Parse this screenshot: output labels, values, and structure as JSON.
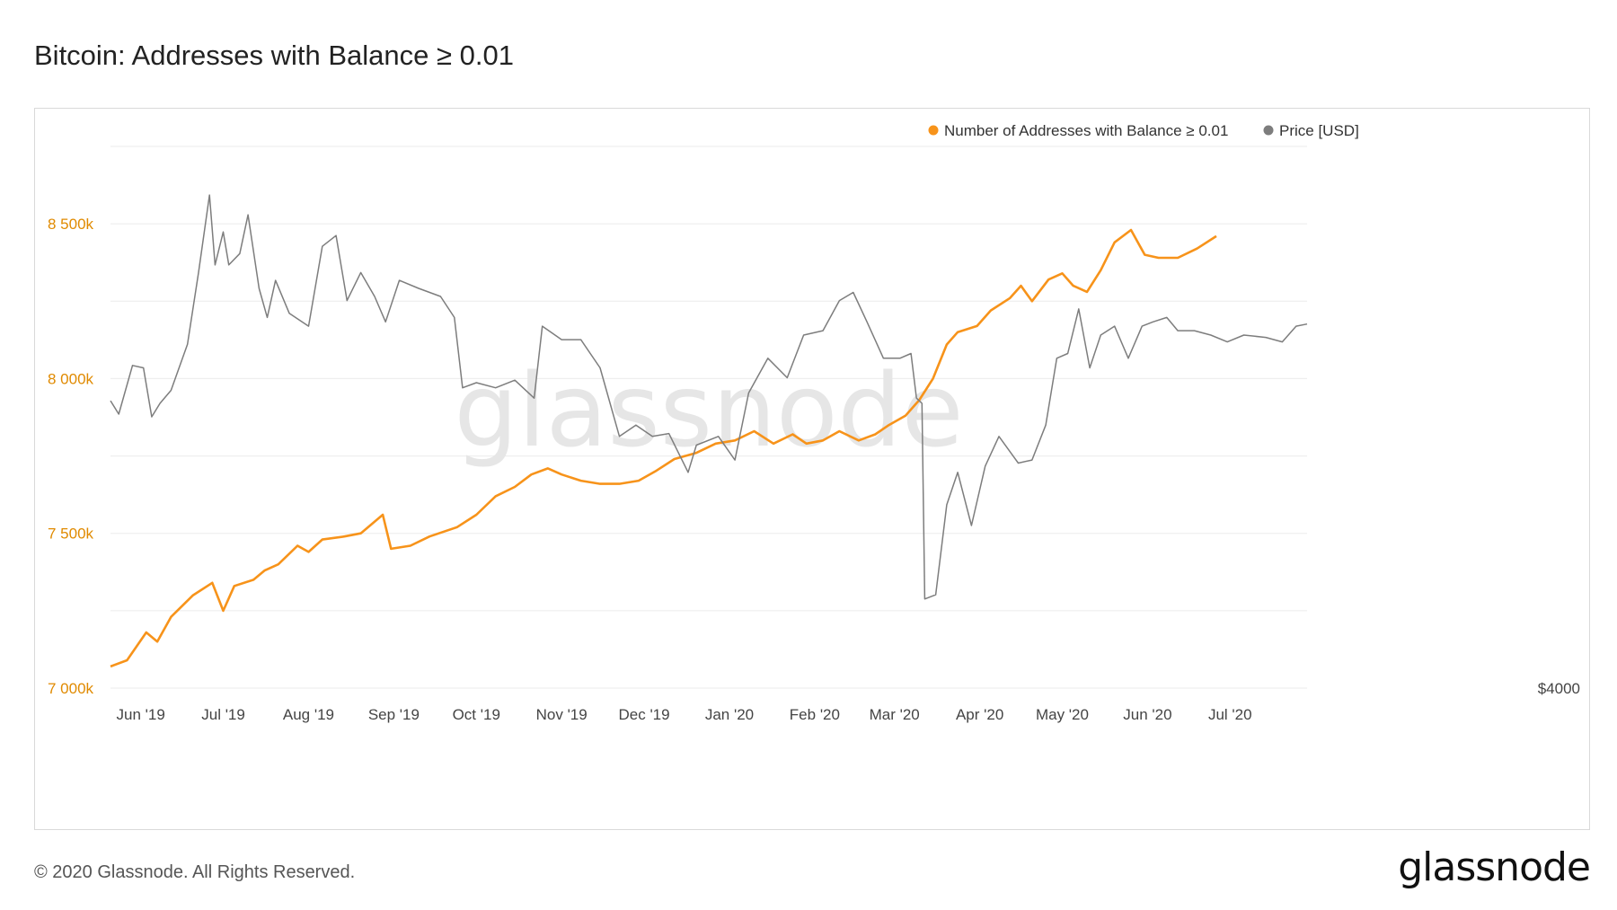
{
  "title": "Bitcoin: Addresses with Balance ≥ 0.01",
  "footer": "© 2020 Glassnode. All Rights Reserved.",
  "brand": "glassnode",
  "watermark": "glassnode",
  "colors": {
    "addresses": "#f7931a",
    "price": "#7d7d7d",
    "grid": "#ebebeb",
    "axis_left": "#e08a00"
  },
  "chart_data": {
    "type": "line",
    "title": "Bitcoin: Addresses with Balance ≥ 0.01",
    "legend_position": "top-right",
    "grid": true,
    "x_range": [
      "2019-05-21",
      "2020-07-29"
    ],
    "x_ticks": [
      {
        "date": "2019-06-01",
        "label": "Jun '19"
      },
      {
        "date": "2019-07-01",
        "label": "Jul '19"
      },
      {
        "date": "2019-08-01",
        "label": "Aug '19"
      },
      {
        "date": "2019-09-01",
        "label": "Sep '19"
      },
      {
        "date": "2019-10-01",
        "label": "Oct '19"
      },
      {
        "date": "2019-11-01",
        "label": "Nov '19"
      },
      {
        "date": "2019-12-01",
        "label": "Dec '19"
      },
      {
        "date": "2020-01-01",
        "label": "Jan '20"
      },
      {
        "date": "2020-02-01",
        "label": "Feb '20"
      },
      {
        "date": "2020-03-01",
        "label": "Mar '20"
      },
      {
        "date": "2020-04-01",
        "label": "Apr '20"
      },
      {
        "date": "2020-05-01",
        "label": "May '20"
      },
      {
        "date": "2020-06-01",
        "label": "Jun '20"
      },
      {
        "date": "2020-07-01",
        "label": "Jul '20"
      }
    ],
    "y_left": {
      "range": [
        7000000,
        8750000
      ],
      "ticks": [
        {
          "value": 7000000,
          "label": "7 000k"
        },
        {
          "value": 7500000,
          "label": "7 500k"
        },
        {
          "value": 8000000,
          "label": "8 000k"
        },
        {
          "value": 8500000,
          "label": "8 500k"
        }
      ]
    },
    "y_right": {
      "scale": "log",
      "range": [
        4000,
        14600
      ],
      "ticks": [
        {
          "value": 4000,
          "label": "$4000"
        }
      ]
    },
    "series": [
      {
        "name": "Number of Addresses with Balance ≥ 0.01",
        "axis": "left",
        "points": [
          [
            "2019-05-21",
            7070000
          ],
          [
            "2019-05-27",
            7090000
          ],
          [
            "2019-06-03",
            7180000
          ],
          [
            "2019-06-07",
            7150000
          ],
          [
            "2019-06-12",
            7230000
          ],
          [
            "2019-06-20",
            7300000
          ],
          [
            "2019-06-27",
            7340000
          ],
          [
            "2019-07-01",
            7250000
          ],
          [
            "2019-07-05",
            7330000
          ],
          [
            "2019-07-12",
            7350000
          ],
          [
            "2019-07-16",
            7380000
          ],
          [
            "2019-07-21",
            7400000
          ],
          [
            "2019-07-28",
            7460000
          ],
          [
            "2019-08-01",
            7440000
          ],
          [
            "2019-08-06",
            7480000
          ],
          [
            "2019-08-14",
            7490000
          ],
          [
            "2019-08-20",
            7500000
          ],
          [
            "2019-08-28",
            7560000
          ],
          [
            "2019-08-31",
            7450000
          ],
          [
            "2019-09-07",
            7460000
          ],
          [
            "2019-09-14",
            7490000
          ],
          [
            "2019-09-24",
            7520000
          ],
          [
            "2019-10-01",
            7560000
          ],
          [
            "2019-10-08",
            7620000
          ],
          [
            "2019-10-15",
            7650000
          ],
          [
            "2019-10-21",
            7690000
          ],
          [
            "2019-10-27",
            7710000
          ],
          [
            "2019-11-01",
            7690000
          ],
          [
            "2019-11-08",
            7670000
          ],
          [
            "2019-11-15",
            7660000
          ],
          [
            "2019-11-22",
            7660000
          ],
          [
            "2019-11-29",
            7670000
          ],
          [
            "2019-12-05",
            7700000
          ],
          [
            "2019-12-12",
            7740000
          ],
          [
            "2019-12-20",
            7760000
          ],
          [
            "2019-12-27",
            7790000
          ],
          [
            "2020-01-03",
            7800000
          ],
          [
            "2020-01-10",
            7830000
          ],
          [
            "2020-01-17",
            7790000
          ],
          [
            "2020-01-24",
            7820000
          ],
          [
            "2020-01-29",
            7790000
          ],
          [
            "2020-02-04",
            7800000
          ],
          [
            "2020-02-10",
            7830000
          ],
          [
            "2020-02-17",
            7800000
          ],
          [
            "2020-02-23",
            7820000
          ],
          [
            "2020-02-28",
            7850000
          ],
          [
            "2020-03-05",
            7880000
          ],
          [
            "2020-03-10",
            7930000
          ],
          [
            "2020-03-15",
            8000000
          ],
          [
            "2020-03-20",
            8110000
          ],
          [
            "2020-03-24",
            8150000
          ],
          [
            "2020-03-31",
            8170000
          ],
          [
            "2020-04-05",
            8220000
          ],
          [
            "2020-04-12",
            8260000
          ],
          [
            "2020-04-16",
            8300000
          ],
          [
            "2020-04-20",
            8250000
          ],
          [
            "2020-04-26",
            8320000
          ],
          [
            "2020-05-01",
            8340000
          ],
          [
            "2020-05-05",
            8300000
          ],
          [
            "2020-05-10",
            8280000
          ],
          [
            "2020-05-15",
            8350000
          ],
          [
            "2020-05-20",
            8440000
          ],
          [
            "2020-05-26",
            8480000
          ],
          [
            "2020-05-31",
            8400000
          ],
          [
            "2020-06-05",
            8390000
          ],
          [
            "2020-06-12",
            8390000
          ],
          [
            "2020-06-19",
            8420000
          ],
          [
            "2020-06-26",
            8460000
          ]
        ]
      },
      {
        "name": "Price [USD]",
        "axis": "right",
        "points": [
          [
            "2019-05-21",
            7950
          ],
          [
            "2019-05-24",
            7700
          ],
          [
            "2019-05-29",
            8650
          ],
          [
            "2019-06-02",
            8600
          ],
          [
            "2019-06-05",
            7650
          ],
          [
            "2019-06-08",
            7900
          ],
          [
            "2019-06-12",
            8150
          ],
          [
            "2019-06-18",
            9100
          ],
          [
            "2019-06-22",
            10800
          ],
          [
            "2019-06-26",
            13000
          ],
          [
            "2019-06-28",
            11000
          ],
          [
            "2019-07-01",
            11900
          ],
          [
            "2019-07-03",
            11000
          ],
          [
            "2019-07-07",
            11300
          ],
          [
            "2019-07-10",
            12400
          ],
          [
            "2019-07-14",
            10400
          ],
          [
            "2019-07-17",
            9700
          ],
          [
            "2019-07-20",
            10600
          ],
          [
            "2019-07-25",
            9800
          ],
          [
            "2019-08-01",
            9500
          ],
          [
            "2019-08-06",
            11500
          ],
          [
            "2019-08-11",
            11800
          ],
          [
            "2019-08-15",
            10100
          ],
          [
            "2019-08-20",
            10800
          ],
          [
            "2019-08-25",
            10200
          ],
          [
            "2019-08-29",
            9600
          ],
          [
            "2019-09-03",
            10600
          ],
          [
            "2019-09-10",
            10400
          ],
          [
            "2019-09-18",
            10200
          ],
          [
            "2019-09-23",
            9700
          ],
          [
            "2019-09-26",
            8200
          ],
          [
            "2019-10-01",
            8300
          ],
          [
            "2019-10-08",
            8200
          ],
          [
            "2019-10-15",
            8350
          ],
          [
            "2019-10-22",
            8000
          ],
          [
            "2019-10-25",
            9500
          ],
          [
            "2019-11-01",
            9200
          ],
          [
            "2019-11-08",
            9200
          ],
          [
            "2019-11-15",
            8600
          ],
          [
            "2019-11-22",
            7300
          ],
          [
            "2019-11-28",
            7500
          ],
          [
            "2019-12-04",
            7300
          ],
          [
            "2019-12-10",
            7350
          ],
          [
            "2019-12-17",
            6700
          ],
          [
            "2019-12-20",
            7150
          ],
          [
            "2019-12-28",
            7300
          ],
          [
            "2020-01-03",
            6900
          ],
          [
            "2020-01-08",
            8100
          ],
          [
            "2020-01-15",
            8800
          ],
          [
            "2020-01-22",
            8400
          ],
          [
            "2020-01-28",
            9300
          ],
          [
            "2020-02-04",
            9400
          ],
          [
            "2020-02-10",
            10100
          ],
          [
            "2020-02-15",
            10300
          ],
          [
            "2020-02-20",
            9600
          ],
          [
            "2020-02-26",
            8800
          ],
          [
            "2020-03-03",
            8800
          ],
          [
            "2020-03-07",
            8900
          ],
          [
            "2020-03-09",
            8000
          ],
          [
            "2020-03-11",
            7900
          ],
          [
            "2020-03-12",
            4950
          ],
          [
            "2020-03-16",
            5000
          ],
          [
            "2020-03-20",
            6200
          ],
          [
            "2020-03-24",
            6700
          ],
          [
            "2020-03-29",
            5900
          ],
          [
            "2020-04-03",
            6800
          ],
          [
            "2020-04-08",
            7300
          ],
          [
            "2020-04-15",
            6850
          ],
          [
            "2020-04-20",
            6900
          ],
          [
            "2020-04-25",
            7500
          ],
          [
            "2020-04-29",
            8800
          ],
          [
            "2020-05-03",
            8900
          ],
          [
            "2020-05-07",
            9900
          ],
          [
            "2020-05-11",
            8600
          ],
          [
            "2020-05-15",
            9300
          ],
          [
            "2020-05-20",
            9500
          ],
          [
            "2020-05-25",
            8800
          ],
          [
            "2020-05-30",
            9500
          ],
          [
            "2020-06-03",
            9600
          ],
          [
            "2020-06-08",
            9700
          ],
          [
            "2020-06-12",
            9400
          ],
          [
            "2020-06-18",
            9400
          ],
          [
            "2020-06-24",
            9300
          ],
          [
            "2020-06-30",
            9150
          ],
          [
            "2020-07-06",
            9300
          ],
          [
            "2020-07-14",
            9250
          ],
          [
            "2020-07-20",
            9150
          ],
          [
            "2020-07-25",
            9500
          ],
          [
            "2020-07-29",
            9550
          ]
        ]
      }
    ]
  }
}
